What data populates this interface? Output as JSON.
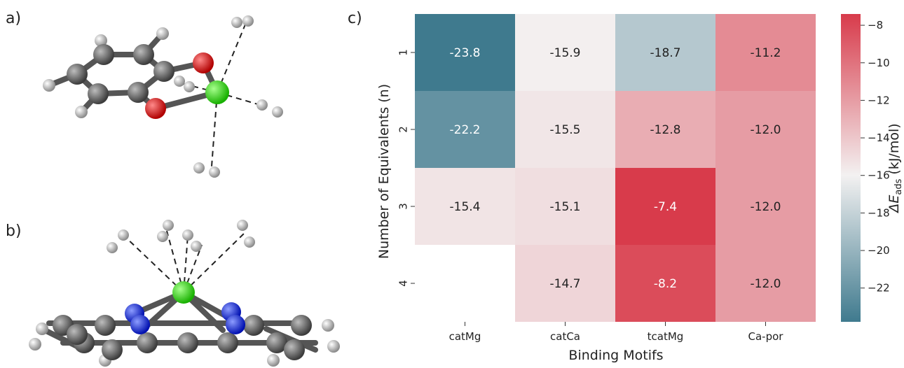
{
  "panels": {
    "a": "a)",
    "b": "b)",
    "c": "c)"
  },
  "chart_data": {
    "type": "heatmap",
    "xlabel": "Binding Motifs",
    "ylabel": "Number of Equivalents (n)",
    "x_categories": [
      "catMg",
      "catCa",
      "tcatMg",
      "Ca-por"
    ],
    "y_categories": [
      "1",
      "2",
      "3",
      "4"
    ],
    "values": [
      [
        -23.8,
        -15.9,
        -18.7,
        -11.2
      ],
      [
        -22.2,
        -15.5,
        -12.8,
        -12.0
      ],
      [
        -15.4,
        -15.1,
        -7.4,
        -12.0
      ],
      [
        null,
        -14.7,
        -8.2,
        -12.0
      ]
    ],
    "value_labels": [
      [
        "-23.8",
        "-15.9",
        "-18.7",
        "-11.2"
      ],
      [
        "-22.2",
        "-15.5",
        "-12.8",
        "-12.0"
      ],
      [
        "-15.4",
        "-15.1",
        "-7.4",
        "-12.0"
      ],
      [
        "",
        "-14.7",
        "-8.2",
        "-12.0"
      ]
    ],
    "colorbar": {
      "label_prefix": "ΔE",
      "label_sub": "ads",
      "label_suffix": " (kJ/mol)",
      "ticks": [
        "−8",
        "−10",
        "−12",
        "−14",
        "−16",
        "−18",
        "−20",
        "−22"
      ],
      "tick_values": [
        -8,
        -10,
        -12,
        -14,
        -16,
        -18,
        -20,
        -22
      ],
      "range": [
        -23.8,
        -7.4
      ],
      "colormap": "diverging teal-white-red",
      "colors": {
        "low": "#3f7a8e",
        "mid": "#f3f1f1",
        "high": "#d83b4b"
      }
    }
  }
}
